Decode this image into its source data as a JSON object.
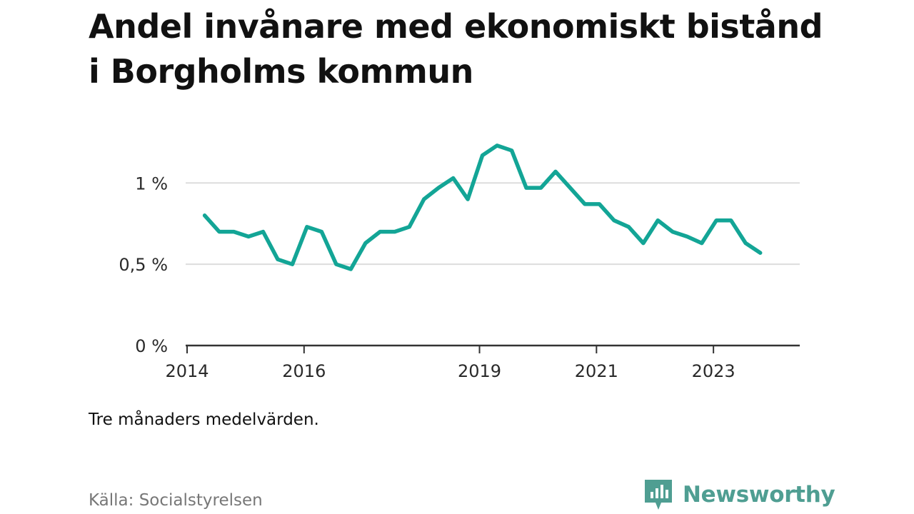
{
  "title": "Andel invånare med ekonomiskt bistånd i Borgholms kommun",
  "note": "Tre månaders medelvärden.",
  "source": "Källa: Socialstyrelsen",
  "brand": {
    "name": "Newsworthy",
    "color": "#4f9e92",
    "icon": "newsworthy-bar-chart-icon"
  },
  "colors": {
    "line": "#13a596",
    "grid": "#dddddd",
    "axis": "#333333"
  },
  "chart_data": {
    "type": "line",
    "title": "Andel invånare med ekonomiskt bistånd i Borgholms kommun",
    "xlabel": "",
    "ylabel": "",
    "xlim": [
      2014.0,
      2024.5
    ],
    "ylim": [
      0,
      1.3
    ],
    "y_ticks": [
      {
        "value": 0,
        "label": "0 %"
      },
      {
        "value": 0.5,
        "label": "0,5 %"
      },
      {
        "value": 1,
        "label": "1 %"
      }
    ],
    "x_ticks": [
      {
        "value": 2014,
        "label": "2014"
      },
      {
        "value": 2016,
        "label": "2016"
      },
      {
        "value": 2019,
        "label": "2019"
      },
      {
        "value": 2021,
        "label": "2021"
      },
      {
        "value": 2023,
        "label": "2023"
      }
    ],
    "grid": true,
    "legend": "none",
    "series": [
      {
        "x": [
          2014.3,
          2014.55,
          2014.8,
          2015.05,
          2015.3,
          2015.55,
          2015.8,
          2016.05,
          2016.3,
          2016.55,
          2016.8,
          2017.05,
          2017.3,
          2017.55,
          2017.8,
          2018.05,
          2018.3,
          2018.55,
          2018.8,
          2019.05,
          2019.3,
          2019.55,
          2019.8,
          2020.05,
          2020.3,
          2020.55,
          2020.8,
          2021.05,
          2021.3,
          2021.55,
          2021.8,
          2022.05,
          2022.3,
          2022.55,
          2022.8,
          2023.05,
          2023.3,
          2023.55,
          2023.8
        ],
        "values": [
          0.8,
          0.7,
          0.7,
          0.67,
          0.7,
          0.53,
          0.5,
          0.73,
          0.7,
          0.5,
          0.47,
          0.63,
          0.7,
          0.7,
          0.73,
          0.9,
          0.97,
          1.03,
          0.9,
          1.17,
          1.23,
          1.2,
          0.97,
          0.97,
          1.07,
          0.97,
          0.87,
          0.87,
          0.77,
          0.73,
          0.63,
          0.77,
          0.7,
          0.67,
          0.63,
          0.77,
          0.77,
          0.63,
          0.57
        ]
      }
    ]
  }
}
